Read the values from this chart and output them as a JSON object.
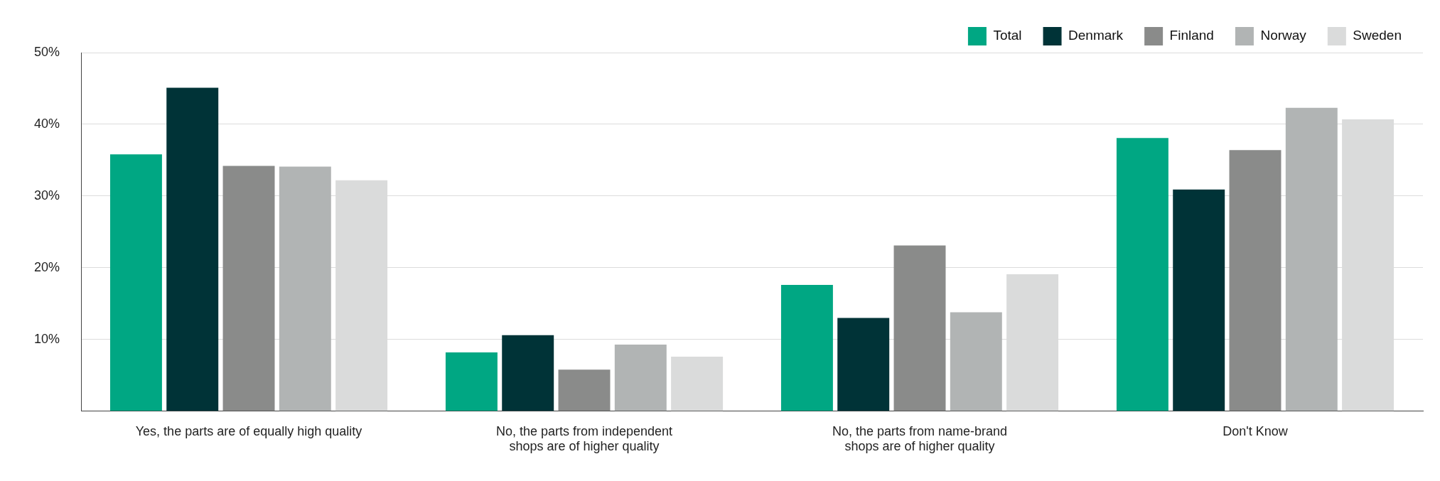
{
  "chart_data": {
    "type": "bar",
    "categories": [
      "Yes, the parts are of equally high quality",
      "No, the parts from independent\nshops are of higher quality",
      "No, the parts from name-brand\nshops are of higher quality",
      "Don't Know"
    ],
    "series": [
      {
        "name": "Total",
        "color": "#00a783",
        "values": [
          35.8,
          8.2,
          17.6,
          38.1
        ]
      },
      {
        "name": "Denmark",
        "color": "#003337",
        "values": [
          45.1,
          10.6,
          13.0,
          30.9
        ]
      },
      {
        "name": "Finland",
        "color": "#8a8b8a",
        "values": [
          34.2,
          5.8,
          23.1,
          36.4
        ]
      },
      {
        "name": "Norway",
        "color": "#b1b4b4",
        "values": [
          34.1,
          9.3,
          13.8,
          42.3
        ]
      },
      {
        "name": "Sweden",
        "color": "#dadbdb",
        "values": [
          32.2,
          7.6,
          19.1,
          40.7
        ]
      }
    ],
    "ylim": [
      0,
      50
    ],
    "yticks": [
      {
        "value": 0,
        "label": null
      },
      {
        "value": 10,
        "label": "10%"
      },
      {
        "value": 20,
        "label": "20%"
      },
      {
        "value": 30,
        "label": "30%"
      },
      {
        "value": 40,
        "label": "40%"
      },
      {
        "value": 50,
        "label": "50%"
      }
    ],
    "grid": "y",
    "legend": "top right"
  }
}
